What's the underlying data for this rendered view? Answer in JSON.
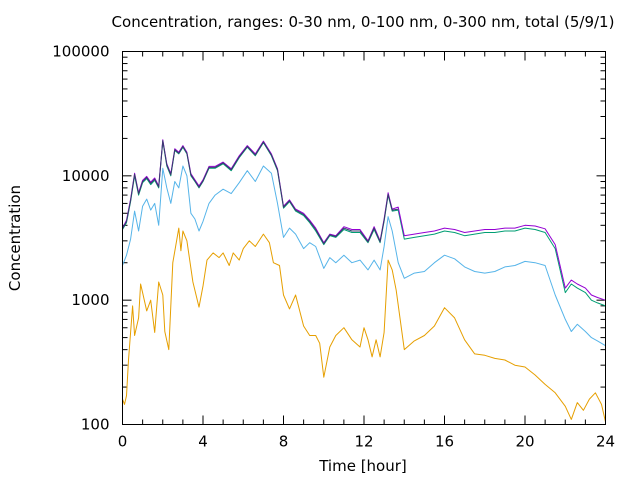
{
  "chart_data": {
    "type": "line",
    "title": "Concentration, ranges: 0-30 nm, 0-100 nm, 0-300 nm, total (5/9/1)",
    "xlabel": "Time [hour]",
    "ylabel": "Concentration",
    "x_scale": "linear",
    "y_scale": "log",
    "xlim": [
      0,
      24
    ],
    "ylim": [
      100,
      100000
    ],
    "x_ticks": [
      0,
      4,
      8,
      12,
      16,
      20,
      24
    ],
    "x_tick_labels": [
      "0",
      "4",
      "8",
      "12",
      "16",
      "20",
      "24"
    ],
    "y_ticks": [
      100,
      1000,
      10000,
      100000
    ],
    "y_tick_labels": [
      "100",
      "1000",
      "10000",
      "100000"
    ],
    "grid": false,
    "legend": "none",
    "series": [
      {
        "color": "#e69f00",
        "x": [
          0,
          0.1,
          0.2,
          0.3,
          0.5,
          0.6,
          0.8,
          0.9,
          1.0,
          1.2,
          1.4,
          1.6,
          1.8,
          2.0,
          2.1,
          2.3,
          2.5,
          2.8,
          2.9,
          3.0,
          3.2,
          3.5,
          3.8,
          4.0,
          4.2,
          4.5,
          4.8,
          5.0,
          5.3,
          5.5,
          5.8,
          6.0,
          6.3,
          6.6,
          7.0,
          7.3,
          7.5,
          7.8,
          8.0,
          8.3,
          8.6,
          9.0,
          9.3,
          9.6,
          9.8,
          10.0,
          10.3,
          10.6,
          11.0,
          11.4,
          11.8,
          12.0,
          12.2,
          12.4,
          12.6,
          12.8,
          13.0,
          13.2,
          13.4,
          13.6,
          14.0,
          14.5,
          15.0,
          15.5,
          16.0,
          16.5,
          17.0,
          17.5,
          18.0,
          18.5,
          19.0,
          19.5,
          20.0,
          20.5,
          21.0,
          21.5,
          22.0,
          22.3,
          22.6,
          22.9,
          23.2,
          23.5,
          23.8,
          24.0
        ],
        "values": [
          160,
          145,
          170,
          330,
          900,
          520,
          720,
          1350,
          1150,
          820,
          1000,
          550,
          1400,
          1100,
          560,
          400,
          2000,
          3800,
          2500,
          3600,
          3000,
          1400,
          880,
          1300,
          2100,
          2400,
          2200,
          2400,
          1900,
          2400,
          2100,
          2600,
          3000,
          2700,
          3400,
          2900,
          2000,
          1900,
          1100,
          850,
          1100,
          620,
          520,
          520,
          450,
          240,
          420,
          520,
          600,
          480,
          420,
          600,
          480,
          350,
          480,
          350,
          550,
          2100,
          1750,
          1200,
          400,
          470,
          520,
          620,
          870,
          720,
          480,
          370,
          360,
          340,
          330,
          300,
          290,
          250,
          210,
          180,
          140,
          110,
          150,
          130,
          160,
          180,
          145,
          105
        ]
      },
      {
        "color": "#56b4e9",
        "x": [
          0,
          0.2,
          0.4,
          0.6,
          0.8,
          1.0,
          1.2,
          1.4,
          1.6,
          1.8,
          2.0,
          2.2,
          2.4,
          2.6,
          2.8,
          3.0,
          3.2,
          3.4,
          3.6,
          3.8,
          4.0,
          4.3,
          4.6,
          5.0,
          5.4,
          5.8,
          6.2,
          6.6,
          7.0,
          7.4,
          7.7,
          8.0,
          8.3,
          8.6,
          9.0,
          9.3,
          9.6,
          10.0,
          10.3,
          10.6,
          11.0,
          11.4,
          11.8,
          12.2,
          12.5,
          12.8,
          13.0,
          13.2,
          13.4,
          13.7,
          14.0,
          14.5,
          15.0,
          15.5,
          16.0,
          16.5,
          17.0,
          17.5,
          18.0,
          18.5,
          19.0,
          19.5,
          20.0,
          20.5,
          21.0,
          21.5,
          22.0,
          22.3,
          22.6,
          23.0,
          23.3,
          23.6,
          24.0
        ],
        "values": [
          1900,
          2300,
          3100,
          5200,
          3600,
          5700,
          6500,
          5300,
          6000,
          4000,
          11500,
          8000,
          6000,
          9000,
          8000,
          12000,
          10000,
          5000,
          4500,
          3600,
          4300,
          6000,
          7000,
          7800,
          7200,
          8800,
          11000,
          9000,
          12000,
          10500,
          6000,
          3200,
          3800,
          3400,
          2600,
          2900,
          2700,
          1800,
          2200,
          2000,
          2300,
          2000,
          2100,
          1750,
          2100,
          1750,
          2700,
          4700,
          3600,
          2000,
          1500,
          1650,
          1700,
          2000,
          2300,
          2150,
          1850,
          1700,
          1650,
          1700,
          1850,
          1900,
          2050,
          2000,
          1900,
          1100,
          700,
          560,
          640,
          560,
          500,
          470,
          430
        ]
      },
      {
        "color": "#009e73",
        "x": [
          0,
          0.2,
          0.4,
          0.6,
          0.8,
          1.0,
          1.2,
          1.4,
          1.6,
          1.8,
          2.0,
          2.2,
          2.4,
          2.6,
          2.8,
          3.0,
          3.2,
          3.4,
          3.6,
          3.8,
          4.0,
          4.3,
          4.6,
          5.0,
          5.4,
          5.8,
          6.2,
          6.6,
          7.0,
          7.4,
          7.7,
          8.0,
          8.3,
          8.6,
          9.0,
          9.3,
          9.6,
          10.0,
          10.3,
          10.6,
          11.0,
          11.4,
          11.8,
          12.2,
          12.5,
          12.8,
          13.0,
          13.2,
          13.4,
          13.7,
          14.0,
          14.5,
          15.0,
          15.5,
          16.0,
          16.5,
          17.0,
          17.5,
          18.0,
          18.5,
          19.0,
          19.5,
          20.0,
          20.5,
          21.0,
          21.5,
          22.0,
          22.3,
          22.6,
          23.0,
          23.3,
          23.6,
          24.0
        ],
        "values": [
          3700,
          4200,
          6200,
          10000,
          7000,
          8800,
          9500,
          8500,
          9200,
          8000,
          19000,
          12000,
          10000,
          16000,
          15000,
          17000,
          15000,
          10000,
          9000,
          8000,
          9000,
          11500,
          11500,
          12500,
          11000,
          14000,
          17000,
          14500,
          18500,
          14500,
          11000,
          5500,
          6200,
          5200,
          4800,
          4200,
          3600,
          2800,
          3300,
          3200,
          3700,
          3500,
          3500,
          2900,
          3700,
          2900,
          4300,
          7000,
          5200,
          5300,
          3100,
          3200,
          3300,
          3400,
          3600,
          3500,
          3300,
          3400,
          3500,
          3500,
          3600,
          3600,
          3800,
          3700,
          3500,
          2600,
          1150,
          1350,
          1250,
          1150,
          1000,
          950,
          900
        ]
      },
      {
        "color": "#9400d3",
        "x": [
          0,
          0.2,
          0.4,
          0.6,
          0.8,
          1.0,
          1.2,
          1.4,
          1.6,
          1.8,
          2.0,
          2.2,
          2.4,
          2.6,
          2.8,
          3.0,
          3.2,
          3.4,
          3.6,
          3.8,
          4.0,
          4.3,
          4.6,
          5.0,
          5.4,
          5.8,
          6.2,
          6.6,
          7.0,
          7.4,
          7.7,
          8.0,
          8.3,
          8.6,
          9.0,
          9.3,
          9.6,
          10.0,
          10.3,
          10.6,
          11.0,
          11.4,
          11.8,
          12.2,
          12.5,
          12.8,
          13.0,
          13.2,
          13.4,
          13.7,
          14.0,
          14.5,
          15.0,
          15.5,
          16.0,
          16.5,
          17.0,
          17.5,
          18.0,
          18.5,
          19.0,
          19.5,
          20.0,
          20.5,
          21.0,
          21.5,
          22.0,
          22.3,
          22.6,
          23.0,
          23.3,
          23.6,
          24.0
        ],
        "values": [
          3800,
          4400,
          6500,
          10500,
          7300,
          9200,
          9900,
          8900,
          9600,
          8300,
          19500,
          12500,
          10400,
          16500,
          15500,
          17500,
          15500,
          10400,
          9300,
          8300,
          9300,
          11900,
          11900,
          12900,
          11400,
          14500,
          17500,
          15000,
          19000,
          15000,
          11400,
          5700,
          6400,
          5400,
          5000,
          4400,
          3800,
          2900,
          3400,
          3300,
          3900,
          3700,
          3700,
          3000,
          3900,
          3000,
          4500,
          7300,
          5400,
          5600,
          3300,
          3400,
          3500,
          3600,
          3800,
          3700,
          3500,
          3600,
          3700,
          3700,
          3800,
          3800,
          4000,
          3950,
          3750,
          2800,
          1250,
          1450,
          1350,
          1250,
          1100,
          1050,
          1000
        ]
      },
      {
        "color": "#3a3a6e",
        "x": [
          0,
          0.2,
          0.4,
          0.6,
          0.8,
          1.0,
          1.2,
          1.4,
          1.6,
          1.8,
          2.0,
          2.2,
          2.4,
          2.6,
          2.8,
          3.0,
          3.2,
          3.4,
          3.6,
          3.8,
          4.0,
          4.3,
          4.6,
          5.0,
          5.4,
          5.8,
          6.2,
          6.6,
          7.0,
          7.4,
          7.7,
          8.0,
          8.3,
          8.6,
          9.0,
          9.3,
          9.6,
          10.0,
          10.3,
          10.6,
          11.0,
          11.4,
          11.8,
          12.2,
          12.5,
          12.8,
          13.0,
          13.2,
          13.4,
          13.7
        ],
        "values": [
          3750,
          4300,
          6350,
          10300,
          7150,
          9000,
          9700,
          8700,
          9400,
          8150,
          19200,
          12300,
          10200,
          16200,
          15200,
          17200,
          15200,
          10200,
          9100,
          8100,
          9100,
          11700,
          11700,
          12700,
          11200,
          14200,
          17200,
          14700,
          18700,
          14700,
          11200,
          5600,
          6300,
          5300,
          4900,
          4300,
          3700,
          2850,
          3350,
          3250,
          3800,
          3600,
          3600,
          2950,
          3800,
          2950,
          4400,
          7100,
          5300,
          5400
        ]
      }
    ]
  }
}
